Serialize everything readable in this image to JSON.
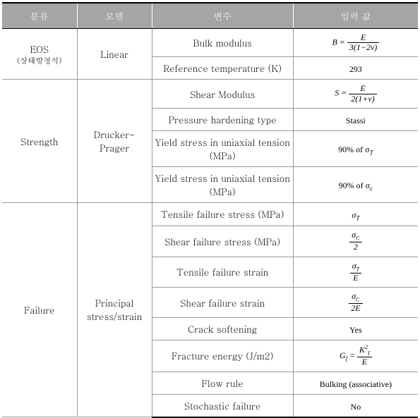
{
  "header": {
    "col1": "분류",
    "col2": "모델",
    "col3": "변수",
    "col4": "입력 값"
  },
  "groups": [
    {
      "category": "EOS",
      "category_sub": "(상태방정식)",
      "model": "Linear",
      "rows": [
        {
          "variable": "Bulk modulus",
          "value_type": "frac",
          "prefix": "B = ",
          "num": "E",
          "den": "3(1−2ν)"
        },
        {
          "variable": "Reference temperature (K)",
          "value_type": "text",
          "value": "293"
        }
      ]
    },
    {
      "category": "Strength",
      "model": "Drucker-\nPrager",
      "rows": [
        {
          "variable": "Shear Modulus",
          "value_type": "frac",
          "prefix": "S = ",
          "num": "E",
          "den": "2(1+ν)"
        },
        {
          "variable": "Pressure hardening type",
          "value_type": "text",
          "value": "Stassi"
        },
        {
          "variable": "Yield stress in uniaxial tension (MPa)",
          "value_type": "pct",
          "value": "90% of σ",
          "sub": "T"
        },
        {
          "variable": "Yield stress in uniaxial tension (MPa)",
          "value_type": "pct",
          "value": "90% of σ",
          "sub": "c"
        }
      ]
    },
    {
      "category": "Failure",
      "model": "Principal stress/strain",
      "rows": [
        {
          "variable": "Tensile failure stress (MPa)",
          "value_type": "sym",
          "value": "σ",
          "sub": "T"
        },
        {
          "variable": "Shear failure stress (MPa)",
          "value_type": "frac",
          "prefix": "",
          "num": "σC",
          "den": "2",
          "num_sub": true
        },
        {
          "variable": "Tensile failure strain",
          "value_type": "frac",
          "prefix": "",
          "num": "σT",
          "den": "E",
          "num_sub": true
        },
        {
          "variable": "Shear failure strain",
          "value_type": "frac",
          "prefix": "",
          "num": "σC",
          "den": "2E",
          "num_sub": true
        },
        {
          "variable": "Crack softening",
          "value_type": "text",
          "value": "Yes"
        },
        {
          "variable": "Fracture energy (J/m2)",
          "value_type": "frac",
          "prefix": "Gf = ",
          "num": "K²I",
          "den": "E",
          "num_sub": true
        },
        {
          "variable": "Flow rule",
          "value_type": "text",
          "value": "Bulking (associative)"
        },
        {
          "variable": "Stochastic failure",
          "value_type": "text",
          "value": "No"
        }
      ]
    }
  ],
  "colors": {
    "header_bg": "#a5a5a5",
    "header_text": "#ffffff",
    "border": "#999",
    "border_heavy": "#000",
    "bg": "#ffffff",
    "text": "#000000"
  },
  "fonts": {
    "body_size": 13,
    "math_size": 12,
    "frac_size": 11
  }
}
